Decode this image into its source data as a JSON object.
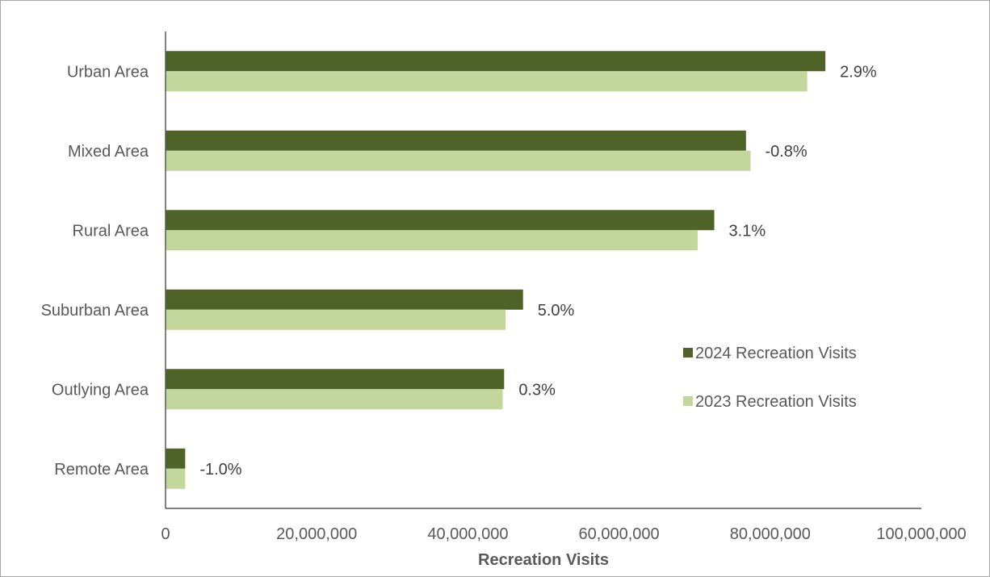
{
  "chart_data": {
    "type": "bar",
    "orientation": "horizontal",
    "categories": [
      "Urban Area",
      "Mixed Area",
      "Rural Area",
      "Suburban Area",
      "Outlying Area",
      "Remote Area"
    ],
    "series": [
      {
        "name": "2024 Recreation Visits",
        "color": "#4f6228",
        "values": [
          87300000,
          76800000,
          72600000,
          47300000,
          44800000,
          2600000
        ]
      },
      {
        "name": "2023 Recreation Visits",
        "color": "#c3d69b",
        "values": [
          84900000,
          77400000,
          70400000,
          45000000,
          44600000,
          2600000
        ]
      }
    ],
    "data_labels": [
      "2.9%",
      "-0.8%",
      "3.1%",
      "5.0%",
      "0.3%",
      "-1.0%"
    ],
    "xlabel": "Recreation Visits",
    "ylabel": "",
    "xlim": [
      0,
      100000000
    ],
    "x_ticks": [
      0,
      20000000,
      40000000,
      60000000,
      80000000,
      100000000
    ],
    "x_tick_labels": [
      "0",
      "20,000,000",
      "40,000,000",
      "60,000,000",
      "80,000,000",
      "100,000,000"
    ],
    "grid": false,
    "legend_position": "right"
  }
}
